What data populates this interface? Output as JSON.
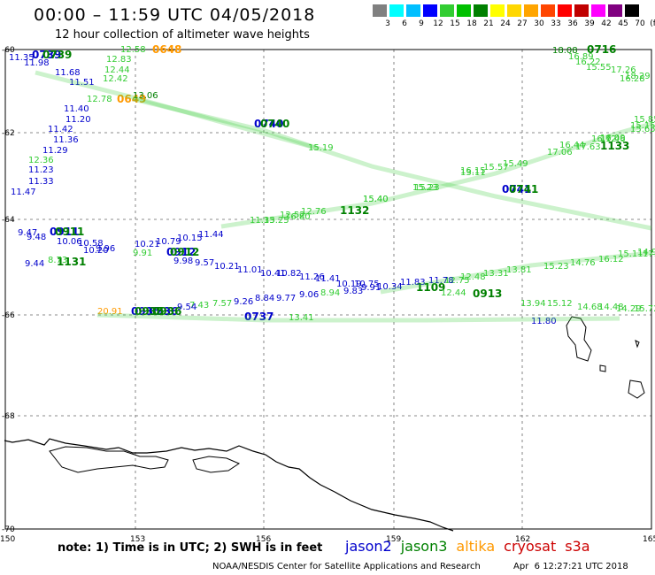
{
  "header": {
    "title": "00:00 – 11:59 UTC 04/05/2018",
    "subtitle": "12 hour collection of altimeter wave heights"
  },
  "scale": {
    "unit": "(ft)",
    "values": [
      "3",
      "6",
      "9",
      "12",
      "15",
      "18",
      "21",
      "24",
      "27",
      "30",
      "33",
      "36",
      "39",
      "42",
      "45",
      "70"
    ],
    "colors": [
      "#808080",
      "#00ffff",
      "#00bfff",
      "#0000ff",
      "#32cd32",
      "#00c000",
      "#008000",
      "#ffff00",
      "#ffd700",
      "#ffa500",
      "#ff4500",
      "#ff0000",
      "#c00000",
      "#ff00ff",
      "#800080",
      "#000000"
    ]
  },
  "axes": {
    "lat_labels": [
      "-60",
      "-62",
      "-64",
      "-66",
      "-68",
      "-70"
    ],
    "lon_labels": [
      "150",
      "153",
      "156",
      "159",
      "162",
      "165"
    ]
  },
  "colors": {
    "jason2": "#0000cc",
    "jason3": "#008000",
    "altika": "#ff9900",
    "cryosat": "#cc0000",
    "s3a": "#cc0000",
    "light": "#33cc33",
    "lighter": "#66dd44"
  },
  "tracks": {
    "time_labels": [
      {
        "text": "0739",
        "sat": "jason2"
      },
      {
        "text": "0739",
        "sat": "jason3"
      },
      {
        "text": "0648",
        "sat": "altika"
      },
      {
        "text": "0649",
        "sat": "altika"
      },
      {
        "text": "0740",
        "sat": "jason2"
      },
      {
        "text": "0740",
        "sat": "jason3"
      },
      {
        "text": "0716",
        "sat": "jason3"
      },
      {
        "text": "1133",
        "sat": "jason3"
      },
      {
        "text": "1132",
        "sat": "jason3"
      },
      {
        "text": "0741",
        "sat": "jason2"
      },
      {
        "text": "0741",
        "sat": "jason3"
      },
      {
        "text": "0911",
        "sat": "jason2"
      },
      {
        "text": "0911",
        "sat": "jason3"
      },
      {
        "text": "1131",
        "sat": "jason3"
      },
      {
        "text": "0912",
        "sat": "jason2"
      },
      {
        "text": "0912",
        "sat": "jason3"
      },
      {
        "text": "1109",
        "sat": "jason3"
      },
      {
        "text": "0913",
        "sat": "jason3"
      },
      {
        "text": "0935",
        "sat": "jason2"
      },
      {
        "text": "0936",
        "sat": "jason2"
      },
      {
        "text": "0935",
        "sat": "jason3"
      },
      {
        "text": "0936",
        "sat": "jason3"
      },
      {
        "text": "0737",
        "sat": "jason2"
      }
    ],
    "wave_values": [
      {
        "text": "11.35",
        "sat": "jason2"
      },
      {
        "text": "11.98",
        "sat": "jason2"
      },
      {
        "text": "11.68",
        "sat": "jason2"
      },
      {
        "text": "11.51",
        "sat": "jason2"
      },
      {
        "text": "11.40",
        "sat": "jason2"
      },
      {
        "text": "11.20",
        "sat": "jason2"
      },
      {
        "text": "11.42",
        "sat": "jason2"
      },
      {
        "text": "11.36",
        "sat": "jason2"
      },
      {
        "text": "11.29",
        "sat": "jason2"
      },
      {
        "text": "11.23",
        "sat": "jason2"
      },
      {
        "text": "11.33",
        "sat": "jason2"
      },
      {
        "text": "11.47",
        "sat": "jason2"
      },
      {
        "text": "12.58",
        "sat": "light"
      },
      {
        "text": "12.83",
        "sat": "light"
      },
      {
        "text": "12.44",
        "sat": "light"
      },
      {
        "text": "12.42",
        "sat": "light"
      },
      {
        "text": "12.78",
        "sat": "light"
      },
      {
        "text": "12.36",
        "sat": "light"
      },
      {
        "text": "13.06",
        "sat": "jason3"
      },
      {
        "text": "18.08",
        "sat": "jason3"
      },
      {
        "text": "16.89",
        "sat": "light"
      },
      {
        "text": "16.22",
        "sat": "light"
      },
      {
        "text": "15.55",
        "sat": "light"
      },
      {
        "text": "17.26",
        "sat": "light"
      },
      {
        "text": "18.29",
        "sat": "light"
      },
      {
        "text": "15.65",
        "sat": "light"
      },
      {
        "text": "16.09",
        "sat": "light"
      },
      {
        "text": "15.19",
        "sat": "light"
      },
      {
        "text": "15.23",
        "sat": "light"
      },
      {
        "text": "15.40",
        "sat": "light"
      },
      {
        "text": "15.49",
        "sat": "light"
      },
      {
        "text": "16.12",
        "sat": "light"
      },
      {
        "text": "16.15",
        "sat": "light"
      },
      {
        "text": "15.57",
        "sat": "light"
      },
      {
        "text": "17.06",
        "sat": "light"
      },
      {
        "text": "17.63",
        "sat": "light"
      },
      {
        "text": "16.44",
        "sat": "light"
      },
      {
        "text": "11.33",
        "sat": "light"
      },
      {
        "text": "9.47",
        "sat": "jason2"
      },
      {
        "text": "9.48",
        "sat": "jason2"
      },
      {
        "text": "10.06",
        "sat": "jason2"
      },
      {
        "text": "10.58",
        "sat": "jason2"
      },
      {
        "text": "10.20",
        "sat": "jason2"
      },
      {
        "text": "9.96",
        "sat": "jason2"
      },
      {
        "text": "10.21",
        "sat": "jason2"
      },
      {
        "text": "10.79",
        "sat": "jason2"
      },
      {
        "text": "10.15",
        "sat": "jason2"
      },
      {
        "text": "11.44",
        "sat": "jason2"
      },
      {
        "text": "9.44",
        "sat": "jason2"
      },
      {
        "text": "8.73",
        "sat": "light"
      },
      {
        "text": "9.91",
        "sat": "light"
      },
      {
        "text": "9.98",
        "sat": "jason2"
      },
      {
        "text": "9.57",
        "sat": "jason2"
      },
      {
        "text": "10.21",
        "sat": "jason2"
      },
      {
        "text": "11.01",
        "sat": "jason2"
      },
      {
        "text": "10.41",
        "sat": "jason2"
      },
      {
        "text": "10.82",
        "sat": "jason2"
      },
      {
        "text": "11.26",
        "sat": "jason2"
      },
      {
        "text": "11.41",
        "sat": "jason2"
      },
      {
        "text": "10.19",
        "sat": "jason2"
      },
      {
        "text": "10.75",
        "sat": "jason2"
      },
      {
        "text": "11.83",
        "sat": "jason2"
      },
      {
        "text": "12.75",
        "sat": "light"
      },
      {
        "text": "12.48",
        "sat": "light"
      },
      {
        "text": "13.31",
        "sat": "light"
      },
      {
        "text": "13.81",
        "sat": "light"
      },
      {
        "text": "15.23",
        "sat": "light"
      },
      {
        "text": "14.76",
        "sat": "light"
      },
      {
        "text": "16.12",
        "sat": "light"
      },
      {
        "text": "15.11",
        "sat": "light"
      },
      {
        "text": "14.91",
        "sat": "light"
      },
      {
        "text": "12.44",
        "sat": "light"
      },
      {
        "text": "13.94",
        "sat": "light"
      },
      {
        "text": "15.12",
        "sat": "light"
      },
      {
        "text": "14.68",
        "sat": "light"
      },
      {
        "text": "14.48",
        "sat": "light"
      },
      {
        "text": "14.29",
        "sat": "light"
      },
      {
        "text": "15.72",
        "sat": "light"
      },
      {
        "text": "9.26",
        "sat": "jason2"
      },
      {
        "text": "8.84",
        "sat": "jason2"
      },
      {
        "text": "9.77",
        "sat": "jason2"
      },
      {
        "text": "9.06",
        "sat": "jason2"
      },
      {
        "text": "8.94",
        "sat": "light"
      },
      {
        "text": "9.83",
        "sat": "jason2"
      },
      {
        "text": "9.91",
        "sat": "jason2"
      },
      {
        "text": "10.34",
        "sat": "jason2"
      },
      {
        "text": "11.78",
        "sat": "jason2"
      },
      {
        "text": "7.43",
        "sat": "light"
      },
      {
        "text": "7.57",
        "sat": "light"
      },
      {
        "text": "9.54",
        "sat": "jason2"
      },
      {
        "text": "11.80",
        "sat": "jason2"
      },
      {
        "text": "20.91",
        "sat": "altika"
      },
      {
        "text": "13.41",
        "sat": "light"
      },
      {
        "text": "15.23",
        "sat": "light"
      },
      {
        "text": "15.40",
        "sat": "light"
      },
      {
        "text": "13.11",
        "sat": "light"
      },
      {
        "text": "12.76",
        "sat": "light"
      },
      {
        "text": "12.52",
        "sat": "light"
      },
      {
        "text": "15.15",
        "sat": "light"
      },
      {
        "text": "15.85",
        "sat": "light"
      },
      {
        "text": "17.15",
        "sat": "light"
      },
      {
        "text": "15.25",
        "sat": "light"
      },
      {
        "text": "16.80",
        "sat": "light"
      },
      {
        "text": "16.28",
        "sat": "light"
      },
      {
        "text": "17.46",
        "sat": "light"
      }
    ]
  },
  "note": "note:  1) Time is in UTC;  2) SWH is in feet",
  "legend": [
    {
      "label": "jason2",
      "color": "#0000cc"
    },
    {
      "label": "jason3",
      "color": "#008000"
    },
    {
      "label": "altika",
      "color": "#ff9900"
    },
    {
      "label": "cryosat",
      "color": "#cc0000"
    },
    {
      "label": "s3a",
      "color": "#cc0000"
    }
  ],
  "footer": {
    "credit": "NOAA/NESDIS Center for Satellite Applications and Research",
    "timestamp": "Apr  6 12:27:21 UTC 2018"
  }
}
